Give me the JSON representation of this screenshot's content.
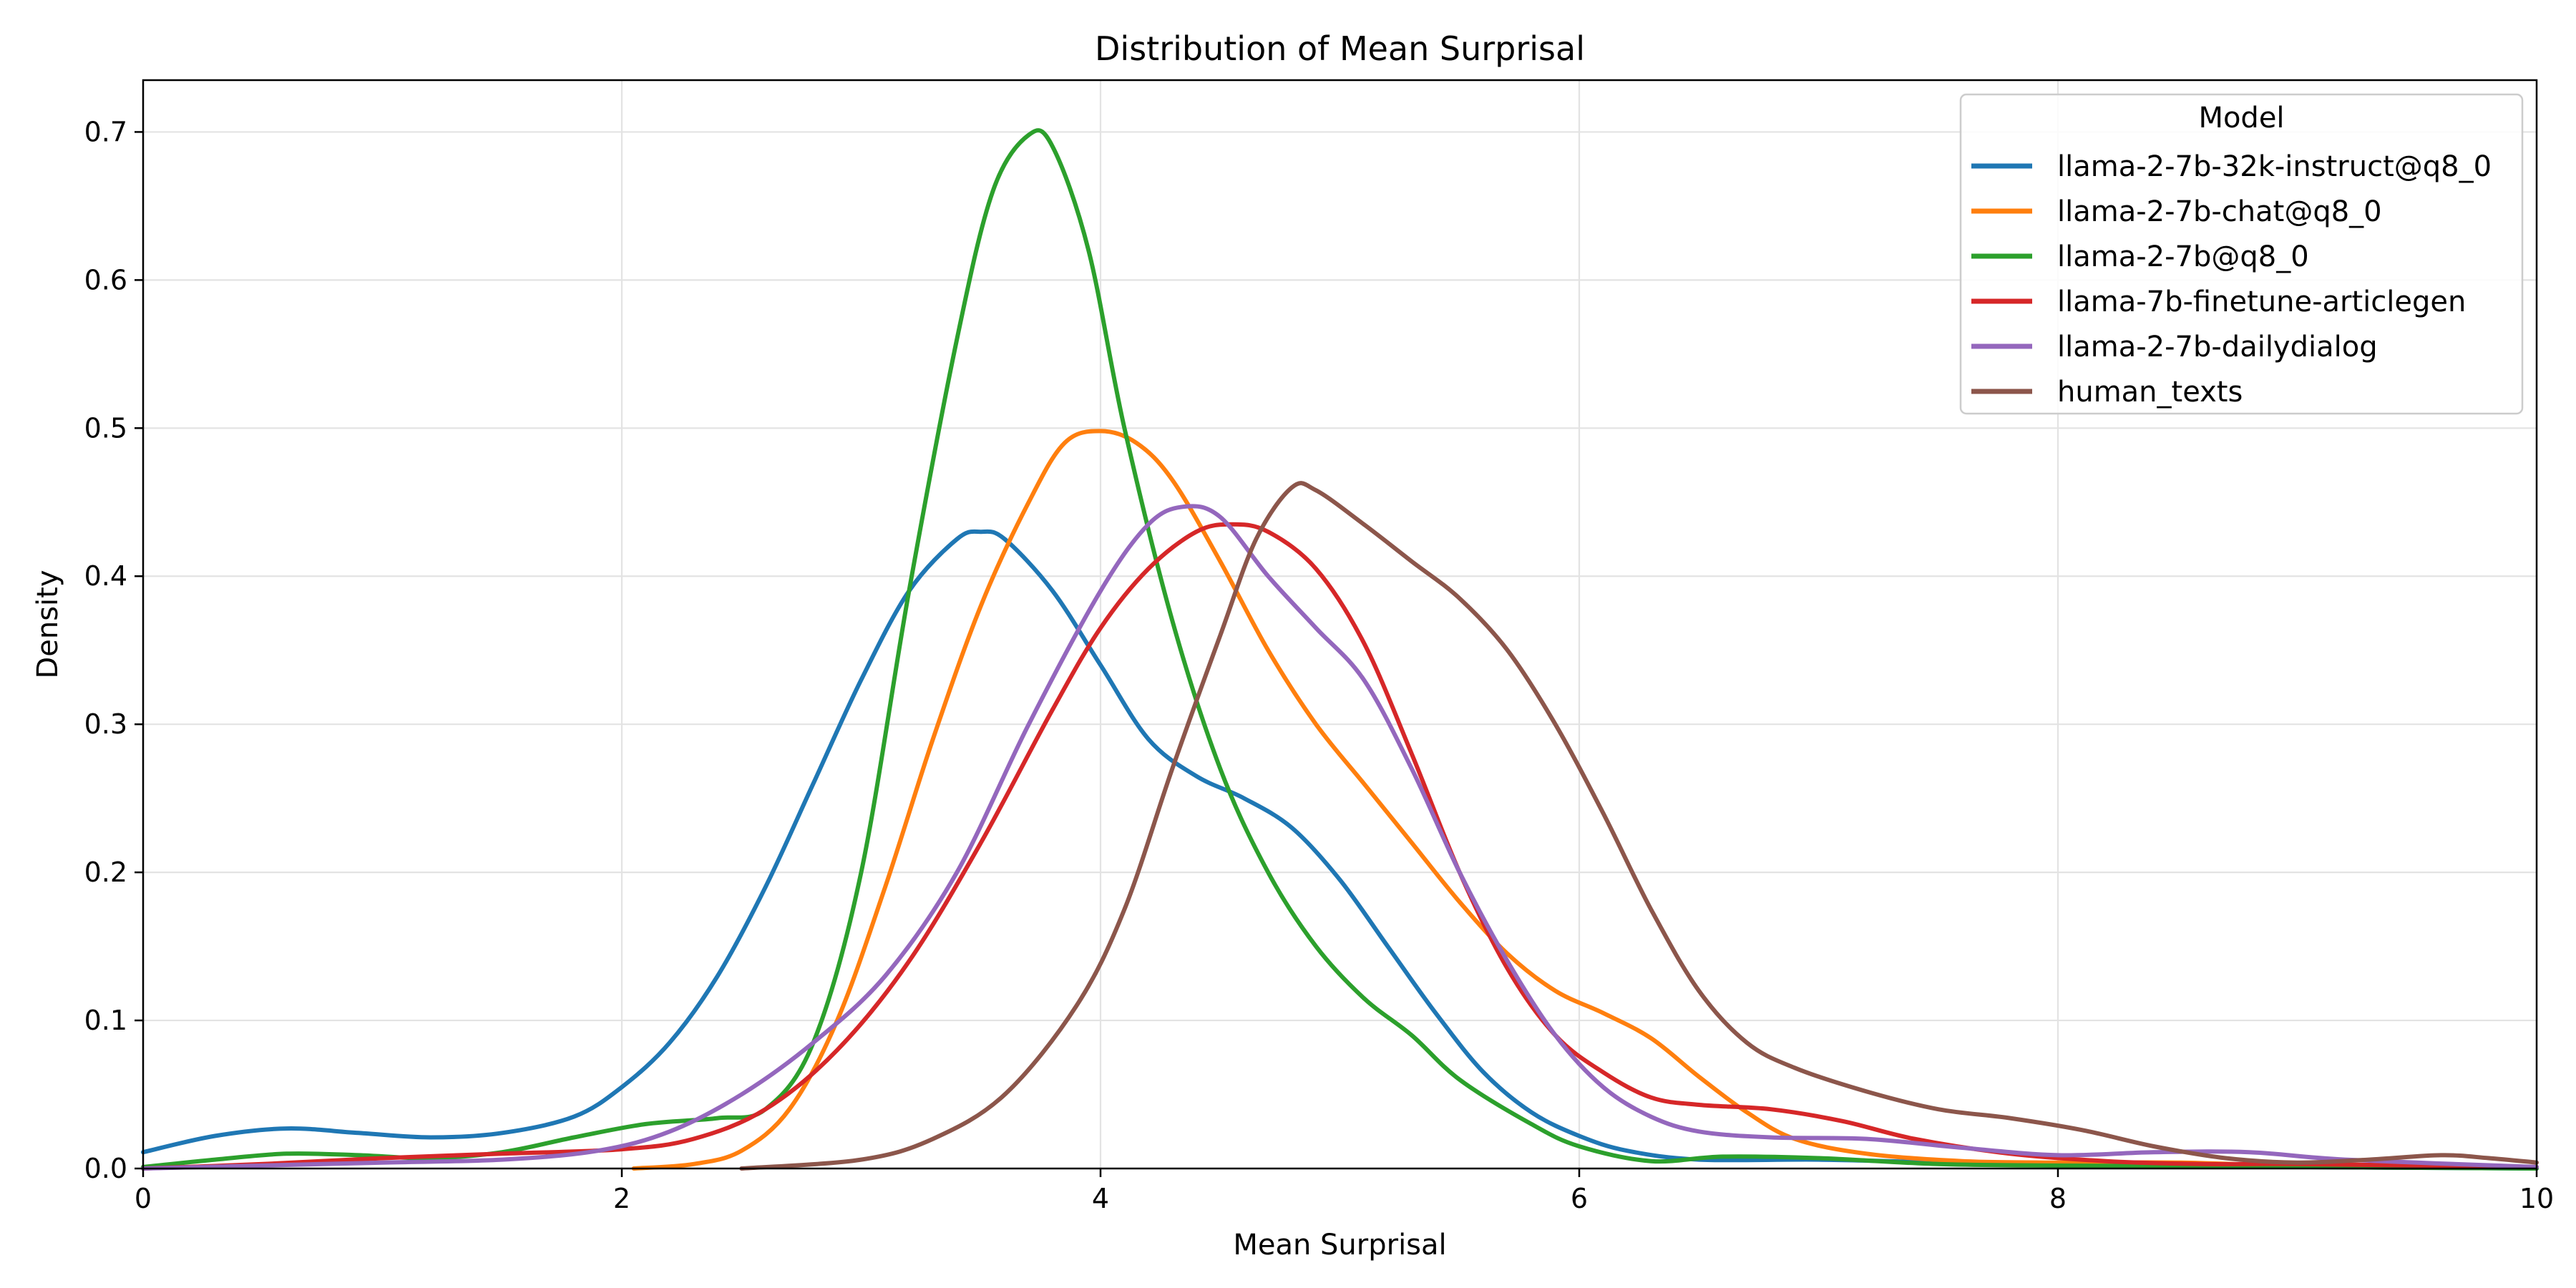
{
  "chart_data": {
    "type": "line",
    "title": "Distribution of Mean Surprisal",
    "xlabel": "Mean Surprisal",
    "ylabel": "Density",
    "xlim": [
      0,
      10
    ],
    "ylim": [
      0,
      0.735
    ],
    "xticks": [
      0,
      2,
      4,
      6,
      8,
      10
    ],
    "xtick_labels": [
      "0",
      "2",
      "4",
      "6",
      "8",
      "10"
    ],
    "yticks": [
      0.0,
      0.1,
      0.2,
      0.3,
      0.4,
      0.5,
      0.6,
      0.7
    ],
    "ytick_labels": [
      "0.0",
      "0.1",
      "0.2",
      "0.3",
      "0.4",
      "0.5",
      "0.6",
      "0.7"
    ],
    "grid": true,
    "legend": {
      "title": "Model",
      "position": "top-right"
    },
    "series": [
      {
        "name": "llama-2-7b-32k-instruct@q8_0",
        "color": "#1f77b4",
        "points": [
          [
            0,
            0.011
          ],
          [
            0.3,
            0.022
          ],
          [
            0.6,
            0.027
          ],
          [
            0.9,
            0.024
          ],
          [
            1.2,
            0.021
          ],
          [
            1.5,
            0.024
          ],
          [
            1.8,
            0.035
          ],
          [
            2.0,
            0.055
          ],
          [
            2.2,
            0.085
          ],
          [
            2.4,
            0.13
          ],
          [
            2.6,
            0.19
          ],
          [
            2.8,
            0.26
          ],
          [
            3.0,
            0.33
          ],
          [
            3.2,
            0.39
          ],
          [
            3.4,
            0.425
          ],
          [
            3.5,
            0.43
          ],
          [
            3.6,
            0.425
          ],
          [
            3.8,
            0.39
          ],
          [
            4.0,
            0.34
          ],
          [
            4.2,
            0.29
          ],
          [
            4.4,
            0.265
          ],
          [
            4.6,
            0.25
          ],
          [
            4.8,
            0.23
          ],
          [
            5.0,
            0.195
          ],
          [
            5.2,
            0.15
          ],
          [
            5.4,
            0.105
          ],
          [
            5.6,
            0.065
          ],
          [
            5.8,
            0.038
          ],
          [
            6.0,
            0.022
          ],
          [
            6.2,
            0.012
          ],
          [
            6.5,
            0.006
          ],
          [
            7.0,
            0.006
          ],
          [
            7.5,
            0.004
          ],
          [
            8.0,
            0.002
          ],
          [
            9.0,
            0.001
          ],
          [
            10.0,
            0.0
          ]
        ]
      },
      {
        "name": "llama-2-7b-chat@q8_0",
        "color": "#ff7f0e",
        "points": [
          [
            2.05,
            0.0
          ],
          [
            2.3,
            0.003
          ],
          [
            2.5,
            0.012
          ],
          [
            2.7,
            0.04
          ],
          [
            2.9,
            0.1
          ],
          [
            3.1,
            0.19
          ],
          [
            3.3,
            0.29
          ],
          [
            3.5,
            0.38
          ],
          [
            3.7,
            0.45
          ],
          [
            3.85,
            0.49
          ],
          [
            4.0,
            0.498
          ],
          [
            4.15,
            0.49
          ],
          [
            4.3,
            0.465
          ],
          [
            4.5,
            0.41
          ],
          [
            4.7,
            0.35
          ],
          [
            4.9,
            0.3
          ],
          [
            5.1,
            0.26
          ],
          [
            5.3,
            0.22
          ],
          [
            5.5,
            0.18
          ],
          [
            5.7,
            0.145
          ],
          [
            5.9,
            0.12
          ],
          [
            6.1,
            0.105
          ],
          [
            6.3,
            0.088
          ],
          [
            6.5,
            0.062
          ],
          [
            6.7,
            0.038
          ],
          [
            6.9,
            0.02
          ],
          [
            7.2,
            0.01
          ],
          [
            7.6,
            0.005
          ],
          [
            8.0,
            0.004
          ],
          [
            8.5,
            0.004
          ],
          [
            9.0,
            0.002
          ],
          [
            10.0,
            0.001
          ]
        ]
      },
      {
        "name": "llama-2-7b@q8_0",
        "color": "#2ca02c",
        "points": [
          [
            0,
            0.001
          ],
          [
            0.3,
            0.006
          ],
          [
            0.6,
            0.01
          ],
          [
            0.9,
            0.009
          ],
          [
            1.2,
            0.007
          ],
          [
            1.5,
            0.011
          ],
          [
            1.8,
            0.021
          ],
          [
            2.1,
            0.03
          ],
          [
            2.4,
            0.034
          ],
          [
            2.6,
            0.04
          ],
          [
            2.8,
            0.085
          ],
          [
            3.0,
            0.2
          ],
          [
            3.2,
            0.39
          ],
          [
            3.4,
            0.56
          ],
          [
            3.55,
            0.66
          ],
          [
            3.7,
            0.698
          ],
          [
            3.8,
            0.69
          ],
          [
            3.95,
            0.62
          ],
          [
            4.1,
            0.5
          ],
          [
            4.3,
            0.37
          ],
          [
            4.5,
            0.27
          ],
          [
            4.7,
            0.2
          ],
          [
            4.9,
            0.15
          ],
          [
            5.1,
            0.115
          ],
          [
            5.3,
            0.09
          ],
          [
            5.5,
            0.06
          ],
          [
            5.8,
            0.03
          ],
          [
            6.0,
            0.015
          ],
          [
            6.3,
            0.005
          ],
          [
            6.6,
            0.008
          ],
          [
            7.0,
            0.007
          ],
          [
            7.5,
            0.003
          ],
          [
            8.0,
            0.002
          ],
          [
            9.0,
            0.001
          ],
          [
            10.0,
            0.0
          ]
        ]
      },
      {
        "name": "llama-7b-finetune-articlegen",
        "color": "#d62728",
        "points": [
          [
            0,
            0.0
          ],
          [
            0.5,
            0.003
          ],
          [
            1.0,
            0.007
          ],
          [
            1.5,
            0.01
          ],
          [
            2.0,
            0.013
          ],
          [
            2.3,
            0.02
          ],
          [
            2.6,
            0.04
          ],
          [
            2.9,
            0.08
          ],
          [
            3.2,
            0.14
          ],
          [
            3.5,
            0.22
          ],
          [
            3.8,
            0.31
          ],
          [
            4.0,
            0.365
          ],
          [
            4.2,
            0.405
          ],
          [
            4.4,
            0.43
          ],
          [
            4.55,
            0.435
          ],
          [
            4.7,
            0.43
          ],
          [
            4.9,
            0.405
          ],
          [
            5.1,
            0.355
          ],
          [
            5.3,
            0.28
          ],
          [
            5.5,
            0.2
          ],
          [
            5.7,
            0.135
          ],
          [
            5.9,
            0.09
          ],
          [
            6.1,
            0.065
          ],
          [
            6.3,
            0.048
          ],
          [
            6.5,
            0.043
          ],
          [
            6.8,
            0.04
          ],
          [
            7.1,
            0.032
          ],
          [
            7.4,
            0.02
          ],
          [
            7.8,
            0.01
          ],
          [
            8.2,
            0.005
          ],
          [
            8.6,
            0.003
          ],
          [
            9.0,
            0.003
          ],
          [
            10.0,
            0.001
          ]
        ]
      },
      {
        "name": "llama-2-7b-dailydialog",
        "color": "#9467bd",
        "points": [
          [
            0,
            0.0
          ],
          [
            0.5,
            0.002
          ],
          [
            1.0,
            0.004
          ],
          [
            1.5,
            0.006
          ],
          [
            1.9,
            0.012
          ],
          [
            2.2,
            0.025
          ],
          [
            2.5,
            0.05
          ],
          [
            2.8,
            0.085
          ],
          [
            3.1,
            0.13
          ],
          [
            3.4,
            0.2
          ],
          [
            3.7,
            0.3
          ],
          [
            4.0,
            0.39
          ],
          [
            4.2,
            0.435
          ],
          [
            4.35,
            0.447
          ],
          [
            4.5,
            0.44
          ],
          [
            4.7,
            0.4
          ],
          [
            4.9,
            0.365
          ],
          [
            5.1,
            0.33
          ],
          [
            5.3,
            0.27
          ],
          [
            5.5,
            0.2
          ],
          [
            5.7,
            0.14
          ],
          [
            5.9,
            0.09
          ],
          [
            6.1,
            0.055
          ],
          [
            6.3,
            0.035
          ],
          [
            6.5,
            0.025
          ],
          [
            6.8,
            0.021
          ],
          [
            7.2,
            0.02
          ],
          [
            7.6,
            0.014
          ],
          [
            8.0,
            0.009
          ],
          [
            8.4,
            0.011
          ],
          [
            8.8,
            0.011
          ],
          [
            9.2,
            0.006
          ],
          [
            10.0,
            0.001
          ]
        ]
      },
      {
        "name": "human_texts",
        "color": "#8c564b",
        "points": [
          [
            2.5,
            0.0
          ],
          [
            3.0,
            0.006
          ],
          [
            3.3,
            0.02
          ],
          [
            3.6,
            0.05
          ],
          [
            3.9,
            0.11
          ],
          [
            4.1,
            0.175
          ],
          [
            4.3,
            0.27
          ],
          [
            4.5,
            0.36
          ],
          [
            4.65,
            0.425
          ],
          [
            4.8,
            0.46
          ],
          [
            4.9,
            0.458
          ],
          [
            5.1,
            0.435
          ],
          [
            5.3,
            0.41
          ],
          [
            5.5,
            0.385
          ],
          [
            5.7,
            0.35
          ],
          [
            5.9,
            0.3
          ],
          [
            6.1,
            0.24
          ],
          [
            6.3,
            0.175
          ],
          [
            6.5,
            0.12
          ],
          [
            6.7,
            0.085
          ],
          [
            6.9,
            0.068
          ],
          [
            7.2,
            0.052
          ],
          [
            7.5,
            0.04
          ],
          [
            7.8,
            0.034
          ],
          [
            8.1,
            0.026
          ],
          [
            8.4,
            0.015
          ],
          [
            8.7,
            0.007
          ],
          [
            9.0,
            0.004
          ],
          [
            9.3,
            0.006
          ],
          [
            9.6,
            0.009
          ],
          [
            9.8,
            0.007
          ],
          [
            10.0,
            0.004
          ]
        ]
      }
    ]
  }
}
